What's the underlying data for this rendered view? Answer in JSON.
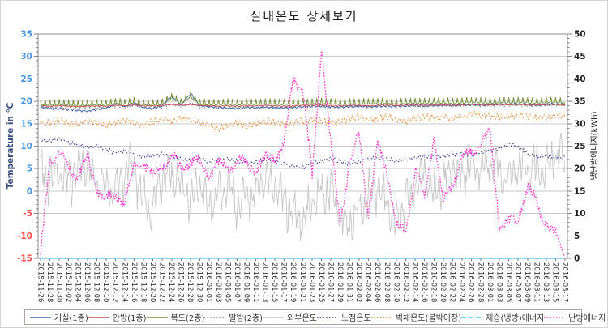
{
  "chart_data": {
    "type": "line",
    "title": "실내온도 상세보기",
    "grid": "horizontal",
    "gridline_color": "#c9c9c9",
    "frame_color": "#8c8c8c",
    "tick_color": "#7f7f7f",
    "legend_position": "bottom",
    "left_axis": {
      "label": "Temperature in ℃",
      "title_color": "#3b5180",
      "min": -15,
      "max": 35,
      "step": 5,
      "tick_color_positive": "#4596e0",
      "tick_color_negative": "#ff4f47"
    },
    "right_axis": {
      "label": "냉난방에너지(kWh)",
      "title_color": "#111111",
      "min": 0,
      "max": 50,
      "step": 5,
      "tick_color": "#222222"
    },
    "x_label_color": "#333333",
    "x": [
      "2015-11-26",
      "2015-11-28",
      "2015-11-30",
      "2015-12-02",
      "2015-12-04",
      "2015-12-06",
      "2015-12-08",
      "2015-12-10",
      "2015-12-12",
      "2015-12-14",
      "2015-12-16",
      "2015-12-18",
      "2015-12-20",
      "2015-12-22",
      "2015-12-24",
      "2015-12-26",
      "2015-12-28",
      "2015-12-30",
      "2016-01-01",
      "2016-01-03",
      "2016-01-05",
      "2016-01-07",
      "2016-01-09",
      "2016-01-11",
      "2016-01-13",
      "2016-01-15",
      "2016-01-17",
      "2016-01-19",
      "2016-01-21",
      "2016-01-23",
      "2016-01-25",
      "2016-01-27",
      "2016-01-29",
      "2016-01-31",
      "2016-02-02",
      "2016-02-04",
      "2016-02-06",
      "2016-02-08",
      "2016-02-10",
      "2016-02-12",
      "2016-02-14",
      "2016-02-16",
      "2016-02-18",
      "2016-02-20",
      "2016-02-22",
      "2016-02-24",
      "2016-02-26",
      "2016-02-28",
      "2016-03-01",
      "2016-03-03",
      "2016-03-05",
      "2016-03-07",
      "2016-03-09",
      "2016-03-11",
      "2016-03-13",
      "2016-03-15",
      "2016-03-17"
    ],
    "series": [
      {
        "name": "거실(1층)",
        "color": "#4168b0",
        "style": "solid",
        "axis": "left",
        "width": 1,
        "z": 4,
        "texture": {
          "pattern": "daily",
          "amp": 0.3
        },
        "values": [
          18.6,
          18.4,
          18.3,
          18.2,
          18.0,
          17.8,
          18.2,
          18.5,
          19.4,
          18.8,
          19.6,
          18.6,
          18.4,
          19.0,
          21.2,
          19.2,
          21.8,
          19.0,
          18.8,
          18.6,
          18.5,
          18.4,
          18.6,
          18.5,
          18.7,
          18.6,
          18.5,
          18.6,
          18.8,
          18.9,
          19.0,
          18.8,
          18.7,
          18.8,
          18.9,
          18.8,
          18.9,
          19.0,
          18.9,
          19.0,
          19.1,
          19.0,
          19.1,
          19.2,
          19.1,
          19.2,
          19.3,
          19.2,
          19.3,
          19.4,
          19.3,
          19.4,
          19.3,
          19.2,
          19.3,
          19.4,
          19.3
        ]
      },
      {
        "name": "안방(1층)",
        "color": "#c0504d",
        "style": "solid",
        "axis": "left",
        "width": 1,
        "z": 5,
        "texture": {
          "pattern": "daily",
          "amp": 0.15
        },
        "values": [
          19.0,
          18.9,
          19.0,
          18.9,
          18.8,
          18.9,
          19.0,
          18.9,
          19.1,
          19.0,
          19.2,
          19.0,
          18.9,
          19.1,
          19.3,
          19.1,
          19.3,
          19.1,
          19.0,
          18.9,
          19.0,
          18.9,
          19.0,
          19.0,
          19.1,
          19.0,
          18.9,
          19.0,
          19.1,
          19.1,
          19.2,
          19.0,
          19.0,
          19.1,
          19.1,
          19.0,
          19.1,
          19.2,
          19.1,
          19.1,
          19.2,
          19.1,
          19.2,
          19.2,
          19.1,
          19.2,
          19.3,
          19.2,
          19.2,
          19.3,
          19.2,
          19.3,
          19.2,
          19.2,
          19.3,
          19.3,
          19.2
        ]
      },
      {
        "name": "복도(2층)",
        "color": "#76923c",
        "style": "solid",
        "axis": "left",
        "width": 1,
        "z": 6,
        "texture": {
          "pattern": "spikes",
          "amp": 1.2
        },
        "values": [
          19.2,
          19.1,
          19.2,
          19.1,
          19.0,
          19.1,
          19.2,
          19.1,
          19.5,
          19.3,
          19.6,
          19.2,
          19.1,
          19.3,
          20.6,
          19.4,
          20.9,
          19.3,
          19.2,
          19.2,
          19.3,
          19.2,
          19.3,
          19.3,
          19.4,
          19.3,
          19.3,
          19.3,
          19.4,
          19.4,
          19.5,
          19.4,
          19.3,
          19.4,
          19.4,
          19.4,
          19.5,
          19.5,
          19.4,
          19.5,
          19.5,
          19.5,
          19.6,
          19.6,
          19.5,
          19.6,
          19.7,
          19.6,
          19.6,
          19.7,
          19.6,
          19.7,
          19.6,
          19.6,
          19.7,
          19.7,
          19.6
        ]
      },
      {
        "name": "딸방(2층)",
        "color": "#808080",
        "style": "dotted",
        "axis": "left",
        "width": 1,
        "z": 3,
        "texture": {
          "pattern": "daily",
          "amp": 0.25
        },
        "values": [
          18.7,
          18.6,
          18.6,
          18.5,
          18.4,
          18.4,
          18.5,
          18.6,
          18.9,
          18.7,
          19.0,
          18.6,
          18.5,
          18.7,
          19.5,
          18.8,
          19.6,
          18.7,
          18.7,
          18.6,
          18.6,
          18.6,
          18.7,
          18.6,
          18.7,
          18.7,
          18.6,
          18.7,
          18.8,
          18.8,
          18.9,
          18.8,
          18.7,
          18.8,
          18.8,
          18.8,
          18.9,
          18.9,
          18.8,
          18.9,
          18.9,
          18.9,
          19.0,
          19.0,
          18.9,
          19.0,
          19.1,
          19.0,
          19.0,
          19.1,
          19.0,
          19.1,
          19.0,
          19.0,
          19.1,
          19.1,
          19.0
        ]
      },
      {
        "name": "외부온도",
        "color": "#c6c6c6",
        "style": "solid",
        "axis": "left",
        "width": 0.9,
        "z": 1,
        "texture": {
          "pattern": "wild",
          "amp": 5
        },
        "clamp": [
          -13,
          17.5
        ],
        "values": [
          4,
          3,
          5,
          2,
          4,
          6,
          3,
          1,
          -1,
          4,
          5,
          -2,
          -4,
          3,
          4,
          1,
          -1,
          2,
          -3,
          -1,
          1,
          -4,
          -2,
          0,
          3,
          1,
          -2,
          -5,
          -7,
          -3,
          -1,
          1,
          -6,
          -8,
          -4,
          -1,
          1,
          -3,
          -7,
          -2,
          1,
          4,
          -1,
          2,
          5,
          3,
          6,
          4,
          7,
          5,
          3,
          6,
          4,
          6,
          5,
          8,
          7
        ]
      },
      {
        "name": "노점온도",
        "color": "#2e3192",
        "style": "dotted",
        "axis": "left",
        "width": 1,
        "z": 7,
        "texture": {
          "pattern": "daily",
          "amp": 0.55
        },
        "values": [
          11.5,
          11.2,
          11.8,
          10.8,
          10.2,
          9.8,
          10.0,
          9.2,
          8.6,
          9.0,
          8.2,
          7.6,
          8.0,
          8.2,
          7.6,
          7.2,
          7.0,
          7.2,
          6.6,
          6.9,
          7.1,
          6.6,
          6.3,
          6.6,
          6.9,
          6.6,
          6.1,
          5.6,
          5.2,
          6.1,
          6.6,
          7.1,
          6.6,
          6.1,
          6.6,
          7.1,
          7.6,
          7.1,
          6.6,
          7.1,
          7.3,
          7.6,
          7.4,
          7.8,
          8.0,
          8.3,
          8.0,
          8.5,
          9.0,
          9.5,
          10.6,
          9.8,
          8.3,
          7.6,
          7.8,
          7.5,
          7.3
        ]
      },
      {
        "name": "벽체온도(불박이장)",
        "color": "#e8821e",
        "style": "dotted",
        "axis": "left",
        "width": 1,
        "z": 8,
        "texture": {
          "pattern": "daily",
          "amp": 0.9
        },
        "values": [
          15.5,
          15.1,
          15.8,
          15.3,
          14.9,
          15.6,
          15.1,
          14.6,
          15.3,
          15.8,
          15.1,
          14.6,
          15.6,
          16.1,
          15.6,
          16.2,
          15.8,
          15.1,
          14.6,
          13.9,
          14.6,
          15.1,
          14.3,
          15.1,
          15.6,
          15.3,
          14.9,
          15.1,
          15.6,
          16.1,
          15.6,
          15.1,
          15.6,
          16.1,
          16.6,
          15.9,
          16.1,
          16.6,
          16.1,
          15.6,
          16.1,
          16.6,
          16.3,
          16.6,
          16.1,
          16.6,
          17.1,
          16.6,
          16.9,
          16.3,
          16.6,
          16.9,
          16.6,
          16.3,
          16.6,
          16.9,
          16.5
        ]
      },
      {
        "name": "제습(냉방)에너지",
        "color": "#33ccff",
        "style": "dashed",
        "axis": "right",
        "width": 1.2,
        "z": 2,
        "texture": {
          "pattern": "none",
          "amp": 0
        },
        "values": [
          0,
          0,
          0,
          0,
          0,
          0,
          0,
          0,
          0,
          0,
          0,
          0,
          0,
          0,
          0,
          0,
          0,
          0,
          0,
          0,
          0,
          0,
          0,
          0,
          0,
          0,
          0,
          0,
          0,
          0,
          0,
          0,
          0,
          0,
          0,
          0,
          0,
          0,
          0,
          0,
          0,
          0,
          0,
          0,
          0,
          0,
          0,
          0,
          0,
          0,
          0,
          0,
          0,
          0,
          0,
          0,
          0
        ]
      },
      {
        "name": "난방에너지",
        "color": "#ff2fd2",
        "style": "dotted",
        "axis": "right",
        "width": 1.3,
        "z": 9,
        "texture": {
          "pattern": "wander",
          "amp": 2
        },
        "values": [
          0,
          22,
          24,
          20,
          19,
          22,
          16,
          13,
          14,
          13,
          20,
          22,
          18,
          21,
          23,
          20,
          22,
          21,
          19,
          21,
          20,
          22,
          21,
          20,
          22,
          23,
          25,
          40,
          38,
          18,
          47.5,
          25,
          8,
          21,
          28,
          10,
          25,
          20,
          7,
          6,
          20,
          13,
          28,
          12,
          17,
          22,
          24,
          26,
          27.5,
          8,
          7.5,
          9,
          16,
          12,
          8,
          5,
          0.5
        ]
      }
    ]
  }
}
